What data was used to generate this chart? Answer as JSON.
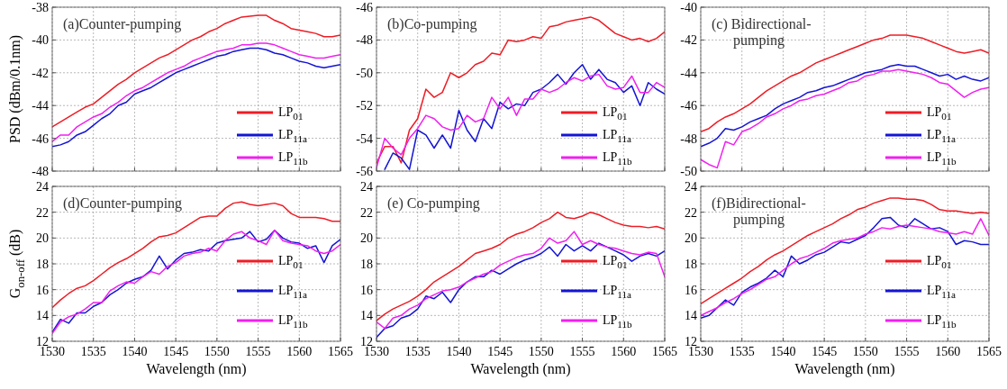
{
  "chart_data": [
    {
      "type": "line",
      "title": "(a)Counter-pumping",
      "ylabel": "PSD (dBm/0.1nm)",
      "xlim": [
        1530,
        1565
      ],
      "xticks": [
        1530,
        1535,
        1540,
        1545,
        1550,
        1555,
        1560,
        1565
      ],
      "ylim": [
        -48,
        -38
      ],
      "yticks": [
        -48,
        -46,
        -44,
        -42,
        -40,
        -38
      ],
      "grid": true,
      "legend": "bottom right",
      "tick_labels": "y",
      "x": [
        1530,
        1531,
        1532,
        1533,
        1534,
        1535,
        1536,
        1537,
        1538,
        1539,
        1540,
        1541,
        1542,
        1543,
        1544,
        1545,
        1546,
        1547,
        1548,
        1549,
        1550,
        1551,
        1552,
        1553,
        1554,
        1555,
        1556,
        1557,
        1558,
        1559,
        1560,
        1561,
        1562,
        1563,
        1564,
        1565
      ],
      "series": [
        {
          "name": "LP$_{01}$",
          "color": "#ee1c25",
          "values": [
            -45.3,
            -45.0,
            -44.7,
            -44.4,
            -44.1,
            -43.9,
            -43.5,
            -43.1,
            -42.7,
            -42.4,
            -42.0,
            -41.7,
            -41.4,
            -41.1,
            -40.9,
            -40.6,
            -40.3,
            -40.0,
            -39.8,
            -39.5,
            -39.3,
            -39.0,
            -38.8,
            -38.6,
            -38.55,
            -38.5,
            -38.5,
            -38.8,
            -39.0,
            -39.3,
            -39.4,
            -39.5,
            -39.6,
            -39.8,
            -39.8,
            -39.7
          ]
        },
        {
          "name": "LP$_{11a}$",
          "color": "#1414d4",
          "values": [
            -46.5,
            -46.4,
            -46.2,
            -45.8,
            -45.6,
            -45.2,
            -44.8,
            -44.5,
            -44.0,
            -43.8,
            -43.3,
            -43.1,
            -42.9,
            -42.6,
            -42.3,
            -42.0,
            -41.8,
            -41.6,
            -41.4,
            -41.2,
            -41.0,
            -40.9,
            -40.7,
            -40.6,
            -40.5,
            -40.5,
            -40.6,
            -40.8,
            -40.9,
            -41.1,
            -41.3,
            -41.4,
            -41.6,
            -41.7,
            -41.6,
            -41.5
          ]
        },
        {
          "name": "LP$_{11b}$",
          "color": "#f020f0",
          "values": [
            -46.2,
            -45.8,
            -45.8,
            -45.3,
            -45.0,
            -44.7,
            -44.5,
            -44.1,
            -43.8,
            -43.4,
            -43.1,
            -42.9,
            -42.6,
            -42.3,
            -42.0,
            -41.8,
            -41.6,
            -41.3,
            -41.1,
            -40.9,
            -40.7,
            -40.6,
            -40.5,
            -40.3,
            -40.3,
            -40.2,
            -40.2,
            -40.3,
            -40.5,
            -40.7,
            -40.9,
            -41.0,
            -41.1,
            -41.1,
            -41.0,
            -40.9
          ]
        }
      ]
    },
    {
      "type": "line",
      "title": "(b)Co-pumping",
      "xlim": [
        1530,
        1565
      ],
      "xticks": [
        1530,
        1535,
        1540,
        1545,
        1550,
        1555,
        1560,
        1565
      ],
      "ylim": [
        -56,
        -46
      ],
      "yticks": [
        -56,
        -54,
        -52,
        -50,
        -48,
        -46
      ],
      "grid": true,
      "legend": "bottom right",
      "tick_labels": "y",
      "x": [
        1530,
        1531,
        1532,
        1533,
        1534,
        1535,
        1536,
        1537,
        1538,
        1539,
        1540,
        1541,
        1542,
        1543,
        1544,
        1545,
        1546,
        1547,
        1548,
        1549,
        1550,
        1551,
        1552,
        1553,
        1554,
        1555,
        1556,
        1557,
        1558,
        1559,
        1560,
        1561,
        1562,
        1563,
        1564,
        1565
      ],
      "series": [
        {
          "name": "LP$_{01}$",
          "color": "#ee1c25",
          "values": [
            -55.5,
            -54.5,
            -54.5,
            -55.5,
            -53.5,
            -52.8,
            -51.0,
            -51.5,
            -51.2,
            -50.0,
            -50.3,
            -50.0,
            -49.5,
            -49.3,
            -48.8,
            -48.9,
            -48.0,
            -48.1,
            -48.0,
            -47.8,
            -47.9,
            -47.2,
            -47.1,
            -46.9,
            -46.8,
            -46.7,
            -46.6,
            -46.8,
            -47.2,
            -47.6,
            -47.8,
            -48.0,
            -47.9,
            -48.1,
            -47.9,
            -47.5
          ]
        },
        {
          "name": "LP$_{11a}$",
          "color": "#1414d4",
          "values": [
            null,
            -55.9,
            -54.9,
            -55.2,
            -55.9,
            -53.5,
            -53.8,
            -54.6,
            -53.8,
            -54.6,
            -52.3,
            -53.5,
            -54.2,
            -52.8,
            -53.4,
            -51.8,
            -52.2,
            -51.9,
            -52.0,
            -51.2,
            -51.0,
            -50.6,
            -50.1,
            -50.7,
            -50.0,
            -49.5,
            -50.4,
            -49.8,
            -50.4,
            -50.6,
            -51.2,
            -50.8,
            -52.0,
            -50.6,
            -51.0,
            -51.3
          ]
        },
        {
          "name": "LP$_{11b}$",
          "color": "#f020f0",
          "values": [
            -55.8,
            -54.0,
            -54.6,
            -55.0,
            -54.0,
            -53.4,
            -52.6,
            -52.8,
            -53.3,
            -53.5,
            -53.4,
            -52.6,
            -53.0,
            -52.8,
            -51.5,
            -52.2,
            -51.5,
            -52.6,
            -51.6,
            -51.6,
            -51.0,
            -51.2,
            -51.0,
            -50.6,
            -50.3,
            -50.5,
            -50.2,
            -50.1,
            -50.8,
            -51.0,
            -50.9,
            -50.2,
            -51.2,
            -51.2,
            -50.6,
            -50.9
          ]
        }
      ]
    },
    {
      "type": "line",
      "title": "(c) Bidirectional-pumping",
      "xlim": [
        1530,
        1565
      ],
      "xticks": [
        1530,
        1535,
        1540,
        1545,
        1550,
        1555,
        1560,
        1565
      ],
      "ylim": [
        -50,
        -40
      ],
      "yticks": [
        -50,
        -48,
        -46,
        -44,
        -42,
        -40
      ],
      "grid": true,
      "legend": "bottom right",
      "tick_labels": "y",
      "x": [
        1530,
        1531,
        1532,
        1533,
        1534,
        1535,
        1536,
        1537,
        1538,
        1539,
        1540,
        1541,
        1542,
        1543,
        1544,
        1545,
        1546,
        1547,
        1548,
        1549,
        1550,
        1551,
        1552,
        1553,
        1554,
        1555,
        1556,
        1557,
        1558,
        1559,
        1560,
        1561,
        1562,
        1563,
        1564,
        1565
      ],
      "series": [
        {
          "name": "LP$_{01}$",
          "color": "#ee1c25",
          "values": [
            -47.6,
            -47.4,
            -47.0,
            -46.7,
            -46.5,
            -46.2,
            -45.9,
            -45.5,
            -45.1,
            -44.8,
            -44.5,
            -44.2,
            -44.0,
            -43.7,
            -43.4,
            -43.2,
            -43.0,
            -42.8,
            -42.6,
            -42.4,
            -42.2,
            -42.0,
            -41.9,
            -41.7,
            -41.7,
            -41.7,
            -41.8,
            -41.9,
            -42.1,
            -42.3,
            -42.5,
            -42.7,
            -42.8,
            -42.7,
            -42.6,
            -42.8
          ]
        },
        {
          "name": "LP$_{11a}$",
          "color": "#1414d4",
          "values": [
            -48.5,
            -48.3,
            -48.0,
            -47.4,
            -47.5,
            -47.3,
            -47.0,
            -46.8,
            -46.6,
            -46.2,
            -45.9,
            -45.7,
            -45.5,
            -45.2,
            -45.1,
            -44.9,
            -44.8,
            -44.6,
            -44.4,
            -44.2,
            -44.0,
            -43.9,
            -43.8,
            -43.6,
            -43.5,
            -43.6,
            -43.6,
            -43.8,
            -44.0,
            -44.2,
            -44.1,
            -44.4,
            -44.2,
            -44.4,
            -44.5,
            -44.3
          ]
        },
        {
          "name": "LP$_{11b}$",
          "color": "#f020f0",
          "values": [
            -49.3,
            -49.6,
            -49.8,
            -48.2,
            -48.4,
            -47.6,
            -47.4,
            -47.1,
            -46.7,
            -46.5,
            -46.2,
            -46.0,
            -45.7,
            -45.6,
            -45.4,
            -45.3,
            -45.1,
            -44.9,
            -44.6,
            -44.5,
            -44.2,
            -44.1,
            -43.9,
            -43.9,
            -43.8,
            -43.9,
            -44.0,
            -44.1,
            -44.3,
            -44.6,
            -44.7,
            -45.1,
            -45.5,
            -45.2,
            -45.0,
            -44.9
          ]
        }
      ]
    },
    {
      "type": "line",
      "title": "(d)Counter-pumping",
      "ylabel": "G$_{on-off}$ (dB)",
      "xlabel": "Wavelength (nm)",
      "xlim": [
        1530,
        1565
      ],
      "xticks": [
        1530,
        1535,
        1540,
        1545,
        1550,
        1555,
        1560,
        1565
      ],
      "ylim": [
        12,
        24
      ],
      "yticks": [
        12,
        14,
        16,
        18,
        20,
        22,
        24
      ],
      "grid": true,
      "legend": "bottom right",
      "x": [
        1530,
        1531,
        1532,
        1533,
        1534,
        1535,
        1536,
        1537,
        1538,
        1539,
        1540,
        1541,
        1542,
        1543,
        1544,
        1545,
        1546,
        1547,
        1548,
        1549,
        1550,
        1551,
        1552,
        1553,
        1554,
        1555,
        1556,
        1557,
        1558,
        1559,
        1560,
        1561,
        1562,
        1563,
        1564,
        1565
      ],
      "series": [
        {
          "name": "LP$_{01}$",
          "color": "#ee1c25",
          "values": [
            14.6,
            15.2,
            15.7,
            16.1,
            16.3,
            16.7,
            17.2,
            17.7,
            18.1,
            18.4,
            18.8,
            19.2,
            19.7,
            20.1,
            20.2,
            20.4,
            20.8,
            21.2,
            21.6,
            21.7,
            21.7,
            22.3,
            22.7,
            22.8,
            22.6,
            22.5,
            22.6,
            22.7,
            22.5,
            21.9,
            21.6,
            21.6,
            21.6,
            21.5,
            21.3,
            21.3
          ]
        },
        {
          "name": "LP$_{11a}$",
          "color": "#1414d4",
          "values": [
            12.7,
            13.7,
            13.4,
            14.2,
            14.2,
            14.7,
            15.0,
            15.6,
            16.0,
            16.5,
            16.8,
            17.0,
            17.5,
            18.6,
            17.6,
            18.3,
            18.8,
            18.9,
            19.1,
            19.0,
            19.6,
            19.8,
            19.9,
            20.0,
            20.5,
            19.7,
            19.9,
            20.6,
            20.0,
            19.7,
            19.6,
            19.2,
            19.4,
            18.1,
            19.4,
            19.9
          ]
        },
        {
          "name": "LP$_{11b}$",
          "color": "#f020f0",
          "values": [
            12.6,
            13.5,
            13.9,
            14.1,
            14.5,
            15.0,
            15.0,
            15.9,
            16.3,
            16.6,
            16.5,
            17.0,
            17.4,
            17.2,
            17.8,
            18.1,
            18.6,
            18.8,
            18.9,
            19.2,
            19.0,
            19.8,
            20.3,
            20.5,
            20.0,
            19.8,
            19.5,
            20.6,
            19.8,
            19.6,
            19.5,
            19.4,
            19.0,
            18.8,
            19.0,
            19.5
          ]
        }
      ]
    },
    {
      "type": "line",
      "title": "(e) Co-pumping",
      "xlabel": "Wavelength (nm)",
      "xlim": [
        1530,
        1565
      ],
      "xticks": [
        1530,
        1535,
        1540,
        1545,
        1550,
        1555,
        1560,
        1565
      ],
      "ylim": [
        12,
        24
      ],
      "yticks": [
        12,
        14,
        16,
        18,
        20,
        22,
        24
      ],
      "grid": true,
      "legend": "bottom right",
      "x": [
        1530,
        1531,
        1532,
        1533,
        1534,
        1535,
        1536,
        1537,
        1538,
        1539,
        1540,
        1541,
        1542,
        1543,
        1544,
        1545,
        1546,
        1547,
        1548,
        1549,
        1550,
        1551,
        1552,
        1553,
        1554,
        1555,
        1556,
        1557,
        1558,
        1559,
        1560,
        1561,
        1562,
        1563,
        1564,
        1565
      ],
      "series": [
        {
          "name": "LP$_{01}$",
          "color": "#ee1c25",
          "values": [
            13.6,
            14.1,
            14.5,
            14.8,
            15.1,
            15.5,
            16.0,
            16.6,
            17.0,
            17.4,
            17.8,
            18.3,
            18.8,
            19.0,
            19.2,
            19.5,
            20.0,
            20.3,
            20.5,
            20.8,
            21.2,
            21.5,
            22.0,
            21.6,
            21.5,
            21.7,
            22.0,
            21.8,
            21.5,
            21.2,
            21.0,
            20.9,
            20.9,
            20.8,
            20.9,
            20.7
          ]
        },
        {
          "name": "LP$_{11a}$",
          "color": "#1414d4",
          "values": [
            12.3,
            13.0,
            13.2,
            13.8,
            14.0,
            14.5,
            15.5,
            15.3,
            15.8,
            15.0,
            16.0,
            16.6,
            17.0,
            17.0,
            17.5,
            17.2,
            17.6,
            18.0,
            18.3,
            18.5,
            18.8,
            19.3,
            18.6,
            19.5,
            19.0,
            19.4,
            19.0,
            19.6,
            19.3,
            19.0,
            18.7,
            18.2,
            18.6,
            18.8,
            18.6,
            19.0
          ]
        },
        {
          "name": "LP$_{11b}$",
          "color": "#f020f0",
          "values": [
            13.5,
            13.0,
            13.8,
            14.0,
            14.5,
            14.8,
            15.3,
            15.6,
            15.9,
            16.0,
            16.2,
            16.6,
            16.9,
            17.2,
            17.4,
            17.9,
            18.2,
            18.5,
            18.7,
            18.8,
            19.2,
            20.0,
            19.6,
            19.8,
            20.5,
            19.5,
            19.8,
            19.5,
            19.3,
            19.2,
            19.0,
            18.8,
            18.7,
            18.9,
            18.8,
            17.0
          ]
        }
      ]
    },
    {
      "type": "line",
      "title": "(f)Bidirectional-pumping",
      "xlabel": "Wavelength (nm)",
      "xlim": [
        1530,
        1565
      ],
      "xticks": [
        1530,
        1535,
        1540,
        1545,
        1550,
        1555,
        1560,
        1565
      ],
      "ylim": [
        12,
        24
      ],
      "yticks": [
        12,
        14,
        16,
        18,
        20,
        22,
        24
      ],
      "grid": true,
      "legend": "bottom right",
      "x": [
        1530,
        1531,
        1532,
        1533,
        1534,
        1535,
        1536,
        1537,
        1538,
        1539,
        1540,
        1541,
        1542,
        1543,
        1544,
        1545,
        1546,
        1547,
        1548,
        1549,
        1550,
        1551,
        1552,
        1553,
        1554,
        1555,
        1556,
        1557,
        1558,
        1559,
        1560,
        1561,
        1562,
        1563,
        1564,
        1565
      ],
      "series": [
        {
          "name": "LP$_{01}$",
          "color": "#ee1c25",
          "values": [
            14.9,
            15.3,
            15.7,
            16.1,
            16.5,
            16.9,
            17.4,
            17.8,
            18.3,
            18.7,
            19.0,
            19.4,
            19.8,
            20.2,
            20.5,
            20.8,
            21.1,
            21.5,
            21.8,
            22.2,
            22.4,
            22.7,
            22.9,
            23.1,
            23.1,
            23.0,
            23.0,
            22.9,
            22.6,
            22.2,
            22.1,
            22.1,
            22.0,
            21.9,
            22.0,
            21.9
          ]
        },
        {
          "name": "LP$_{11a}$",
          "color": "#1414d4",
          "values": [
            13.8,
            14.0,
            14.6,
            15.2,
            14.8,
            15.8,
            16.2,
            16.5,
            16.9,
            17.5,
            17.0,
            18.6,
            18.0,
            18.3,
            18.7,
            18.9,
            19.3,
            19.7,
            19.6,
            19.9,
            20.2,
            20.8,
            21.5,
            21.6,
            21.0,
            20.8,
            21.5,
            21.1,
            20.7,
            20.8,
            20.5,
            19.5,
            19.8,
            19.7,
            19.5,
            19.5
          ]
        },
        {
          "name": "LP$_{11b}$",
          "color": "#f020f0",
          "values": [
            14.0,
            14.3,
            14.6,
            15.0,
            15.3,
            15.7,
            16.0,
            16.4,
            16.8,
            17.0,
            17.5,
            18.0,
            18.4,
            18.6,
            18.9,
            19.2,
            19.6,
            19.8,
            19.9,
            20.0,
            20.3,
            20.5,
            20.8,
            20.7,
            20.9,
            21.0,
            20.9,
            20.8,
            20.7,
            20.5,
            20.4,
            20.3,
            20.5,
            20.3,
            21.5,
            20.2
          ]
        }
      ]
    }
  ]
}
